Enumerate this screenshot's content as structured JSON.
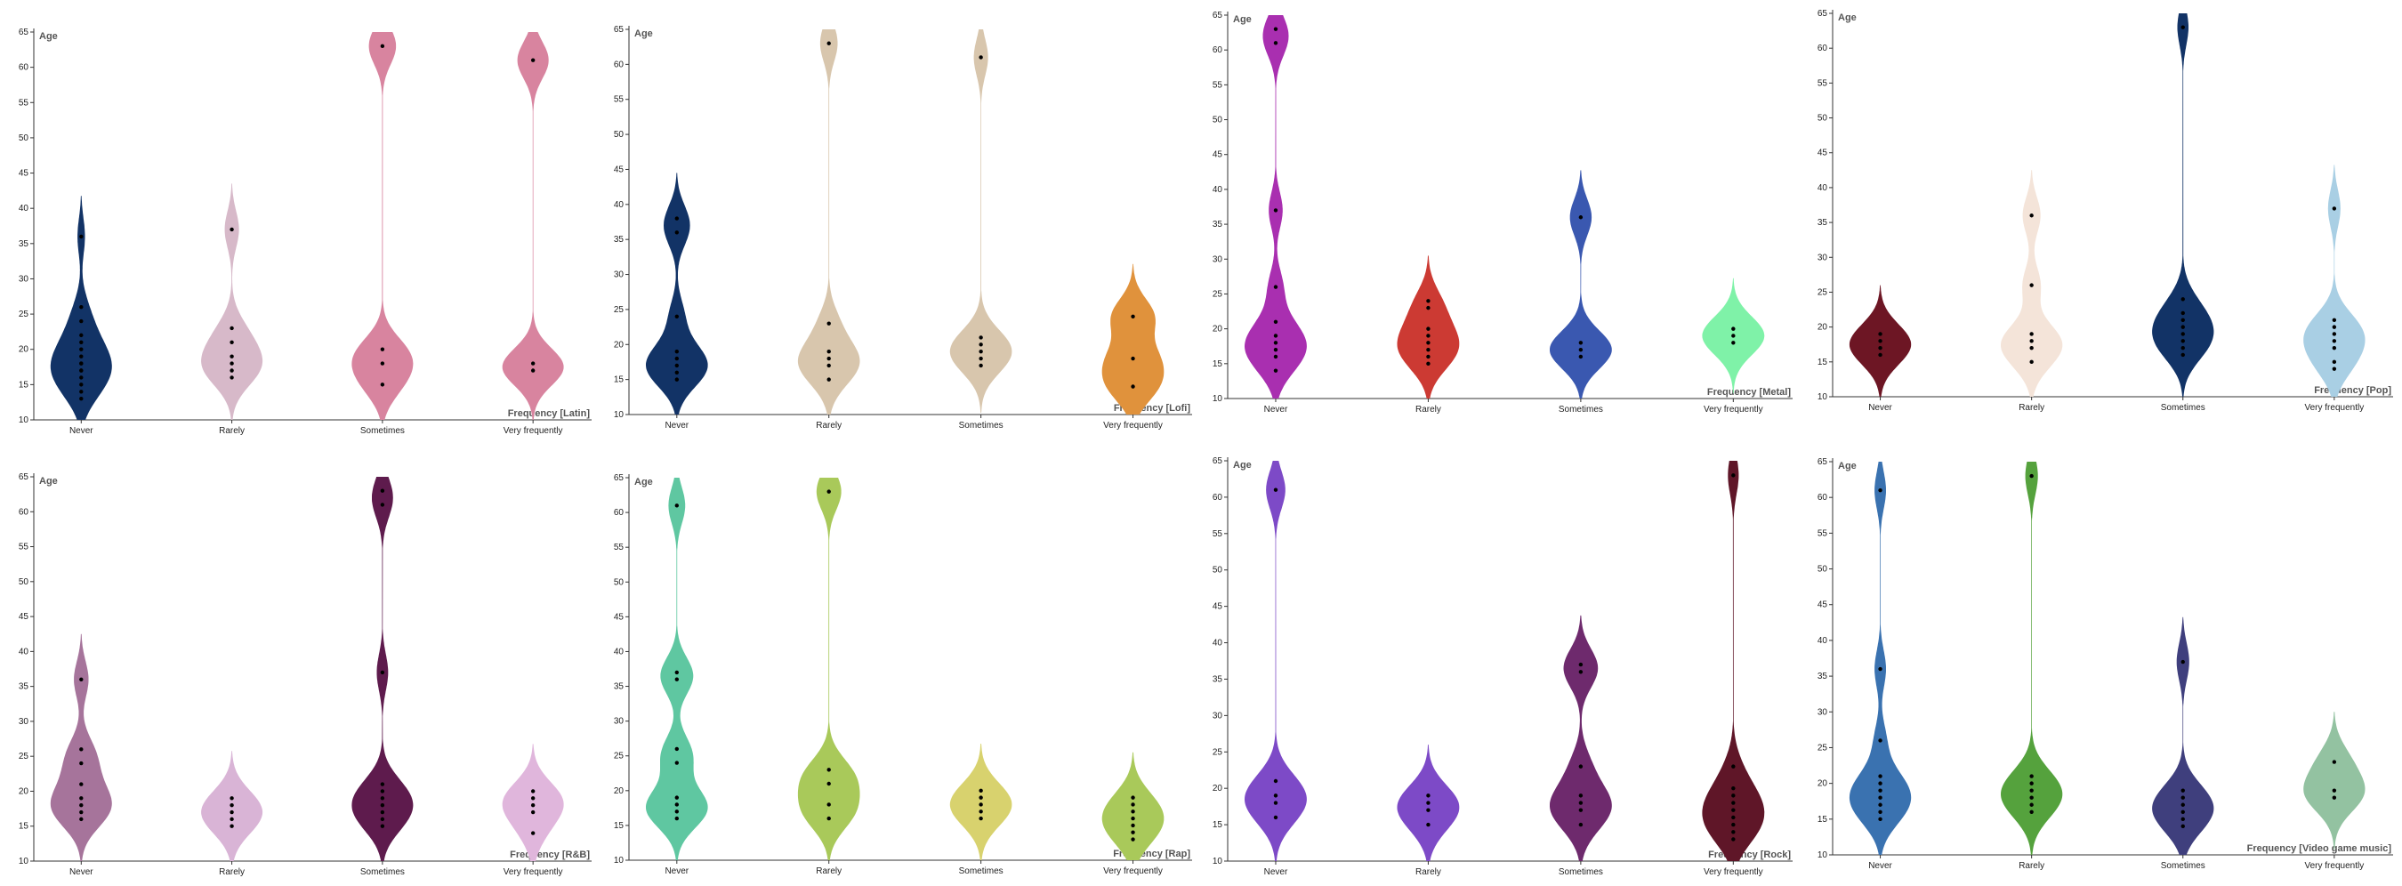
{
  "chart_data": [
    {
      "type": "violin",
      "xlabel": "Frequency [Latin]",
      "ylabel": "Age",
      "categories": [
        "Never",
        "Rarely",
        "Sometimes",
        "Very frequently"
      ],
      "yticks": [
        10,
        15,
        20,
        25,
        30,
        35,
        40,
        45,
        50,
        55,
        60,
        65
      ],
      "ylim": [
        10,
        65
      ],
      "series": [
        {
          "category": "Never",
          "color": "#123366",
          "points": [
            13,
            14,
            15,
            16,
            17,
            17,
            18,
            18,
            19,
            20,
            21,
            22,
            24,
            26,
            36
          ]
        },
        {
          "category": "Rarely",
          "color": "#d7b9c9",
          "points": [
            16,
            17,
            18,
            19,
            21,
            23,
            37
          ]
        },
        {
          "category": "Sometimes",
          "color": "#d8849f",
          "points": [
            15,
            18,
            20,
            63
          ]
        },
        {
          "category": "Very frequently",
          "color": "#d8849f",
          "points": [
            17,
            18,
            61
          ]
        }
      ]
    },
    {
      "type": "violin",
      "xlabel": "Frequency [Lofi]",
      "ylabel": "Age",
      "categories": [
        "Never",
        "Rarely",
        "Sometimes",
        "Very frequently"
      ],
      "yticks": [
        10,
        15,
        20,
        25,
        30,
        35,
        40,
        45,
        50,
        55,
        60,
        65
      ],
      "ylim": [
        10,
        65
      ],
      "series": [
        {
          "category": "Never",
          "color": "#123366",
          "points": [
            15,
            16,
            17,
            18,
            19,
            24,
            36,
            38
          ]
        },
        {
          "category": "Rarely",
          "color": "#d8c6ad",
          "points": [
            15,
            17,
            18,
            19,
            23,
            63
          ]
        },
        {
          "category": "Sometimes",
          "color": "#d8c6ad",
          "points": [
            17,
            18,
            19,
            20,
            21,
            61
          ]
        },
        {
          "category": "Very frequently",
          "color": "#e0923c",
          "points": [
            14,
            18,
            24
          ]
        }
      ]
    },
    {
      "type": "violin",
      "xlabel": "Frequency [Metal]",
      "ylabel": "Age",
      "categories": [
        "Never",
        "Rarely",
        "Sometimes",
        "Very frequently"
      ],
      "yticks": [
        10,
        15,
        20,
        25,
        30,
        35,
        40,
        45,
        50,
        55,
        60,
        65
      ],
      "ylim": [
        10,
        65
      ],
      "series": [
        {
          "category": "Never",
          "color": "#a92fb0",
          "points": [
            14,
            16,
            17,
            18,
            19,
            21,
            26,
            37,
            61,
            63
          ]
        },
        {
          "category": "Rarely",
          "color": "#cc3a33",
          "points": [
            15,
            16,
            17,
            18,
            19,
            20,
            23,
            24
          ]
        },
        {
          "category": "Sometimes",
          "color": "#3a58b0",
          "points": [
            16,
            17,
            18,
            36
          ]
        },
        {
          "category": "Very frequently",
          "color": "#7ff2a8",
          "points": [
            18,
            19,
            20
          ]
        }
      ]
    },
    {
      "type": "violin",
      "xlabel": "Frequency [Pop]",
      "ylabel": "Age",
      "categories": [
        "Never",
        "Rarely",
        "Sometimes",
        "Very frequently"
      ],
      "yticks": [
        10,
        15,
        20,
        25,
        30,
        35,
        40,
        45,
        50,
        55,
        60,
        65
      ],
      "ylim": [
        10,
        65
      ],
      "series": [
        {
          "category": "Never",
          "color": "#6d1624",
          "points": [
            16,
            17,
            18,
            19
          ]
        },
        {
          "category": "Rarely",
          "color": "#f4e4d9",
          "points": [
            15,
            17,
            18,
            19,
            26,
            36
          ]
        },
        {
          "category": "Sometimes",
          "color": "#123366",
          "points": [
            16,
            17,
            18,
            19,
            20,
            21,
            22,
            24,
            63
          ]
        },
        {
          "category": "Very frequently",
          "color": "#a9cfe4",
          "points": [
            14,
            15,
            17,
            18,
            19,
            20,
            21,
            37
          ]
        }
      ]
    },
    {
      "type": "violin",
      "xlabel": "Frequency [R&B]",
      "ylabel": "Age",
      "categories": [
        "Never",
        "Rarely",
        "Sometimes",
        "Very frequently"
      ],
      "yticks": [
        10,
        15,
        20,
        25,
        30,
        35,
        40,
        45,
        50,
        55,
        60,
        65
      ],
      "ylim": [
        10,
        65
      ],
      "series": [
        {
          "category": "Never",
          "color": "#a6749b",
          "points": [
            16,
            17,
            18,
            19,
            21,
            24,
            26,
            36
          ]
        },
        {
          "category": "Rarely",
          "color": "#d9b4d6",
          "points": [
            15,
            16,
            17,
            18,
            19
          ]
        },
        {
          "category": "Sometimes",
          "color": "#5e1b4d",
          "points": [
            15,
            16,
            17,
            18,
            19,
            20,
            21,
            37,
            61,
            63
          ]
        },
        {
          "category": "Very frequently",
          "color": "#e0b6dc",
          "points": [
            14,
            17,
            18,
            19,
            20
          ]
        }
      ]
    },
    {
      "type": "violin",
      "xlabel": "Frequency [Rap]",
      "ylabel": "Age",
      "categories": [
        "Never",
        "Rarely",
        "Sometimes",
        "Very frequently"
      ],
      "yticks": [
        10,
        15,
        20,
        25,
        30,
        35,
        40,
        45,
        50,
        55,
        60,
        65
      ],
      "ylim": [
        10,
        65
      ],
      "series": [
        {
          "category": "Never",
          "color": "#5fc7a1",
          "points": [
            16,
            17,
            18,
            19,
            24,
            26,
            36,
            37,
            61
          ]
        },
        {
          "category": "Rarely",
          "color": "#a9c95a",
          "points": [
            16,
            18,
            21,
            23,
            63
          ]
        },
        {
          "category": "Sometimes",
          "color": "#d8d26e",
          "points": [
            16,
            17,
            18,
            19,
            20
          ]
        },
        {
          "category": "Very frequently",
          "color": "#a9c95a",
          "points": [
            13,
            14,
            15,
            16,
            17,
            18,
            19
          ]
        }
      ]
    },
    {
      "type": "violin",
      "xlabel": "Frequency [Rock]",
      "ylabel": "Age",
      "categories": [
        "Never",
        "Rarely",
        "Sometimes",
        "Very frequently"
      ],
      "yticks": [
        10,
        15,
        20,
        25,
        30,
        35,
        40,
        45,
        50,
        55,
        60,
        65
      ],
      "ylim": [
        10,
        65
      ],
      "series": [
        {
          "category": "Never",
          "color": "#7d4ac7",
          "points": [
            16,
            18,
            19,
            21,
            61
          ]
        },
        {
          "category": "Rarely",
          "color": "#7d4ac7",
          "points": [
            15,
            17,
            18,
            19
          ]
        },
        {
          "category": "Sometimes",
          "color": "#6e2a6d",
          "points": [
            15,
            17,
            18,
            19,
            23,
            36,
            37
          ]
        },
        {
          "category": "Very frequently",
          "color": "#5f1628",
          "points": [
            13,
            14,
            15,
            16,
            17,
            18,
            19,
            20,
            23,
            63
          ]
        }
      ]
    },
    {
      "type": "violin",
      "xlabel": "Frequency [Video game music]",
      "ylabel": "Age",
      "categories": [
        "Never",
        "Rarely",
        "Sometimes",
        "Very frequently"
      ],
      "yticks": [
        10,
        15,
        20,
        25,
        30,
        35,
        40,
        45,
        50,
        55,
        60,
        65
      ],
      "ylim": [
        10,
        65
      ],
      "series": [
        {
          "category": "Never",
          "color": "#3a72b0",
          "points": [
            15,
            16,
            17,
            18,
            19,
            20,
            21,
            26,
            36,
            61
          ]
        },
        {
          "category": "Rarely",
          "color": "#55a23d",
          "points": [
            16,
            17,
            18,
            19,
            20,
            21,
            63
          ]
        },
        {
          "category": "Sometimes",
          "color": "#3f3f7d",
          "points": [
            14,
            15,
            16,
            17,
            18,
            19,
            37
          ]
        },
        {
          "category": "Very frequently",
          "color": "#93c2a1",
          "points": [
            18,
            19,
            23
          ]
        }
      ]
    }
  ]
}
